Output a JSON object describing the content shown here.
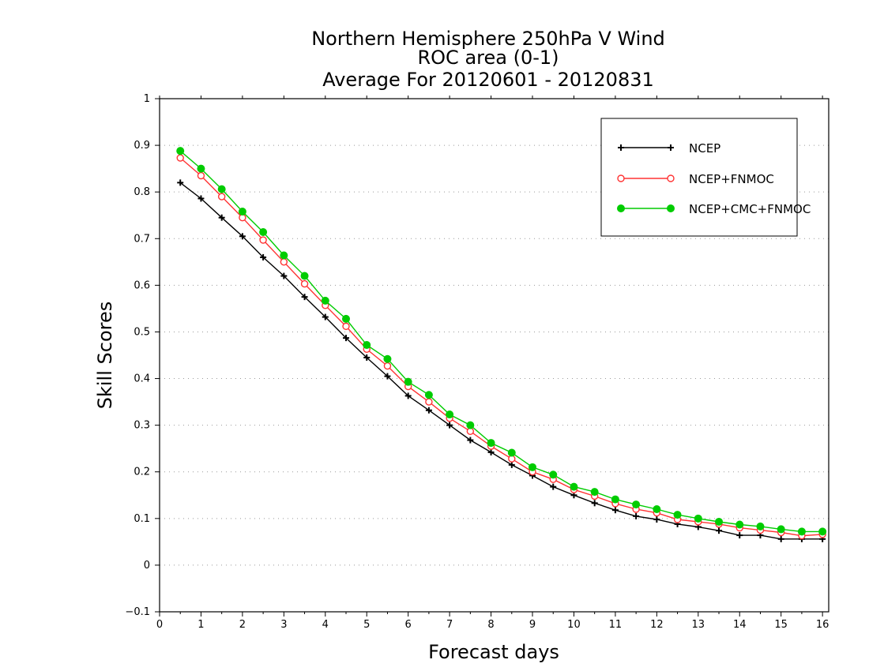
{
  "chart_data": {
    "type": "line",
    "title": [
      "Northern Hemisphere 250hPa V Wind",
      "ROC area (0-1)",
      "Average For 20120601 - 20120831"
    ],
    "xlabel": "Forecast days",
    "ylabel": "Skill Scores",
    "xlim": [
      0,
      16.15
    ],
    "ylim": [
      -0.1,
      1
    ],
    "xticks": [
      "0",
      "1",
      "2",
      "3",
      "4",
      "5",
      "6",
      "7",
      "8",
      "9",
      "10",
      "11",
      "12",
      "13",
      "14",
      "15",
      "16"
    ],
    "yticks": [
      "−0.1",
      "0",
      "0.1",
      "0.2",
      "0.3",
      "0.4",
      "0.5",
      "0.6",
      "0.7",
      "0.8",
      "0.9",
      "1"
    ],
    "grid": true,
    "legend_position": "top-right",
    "x": [
      0.5,
      1,
      1.5,
      2,
      2.5,
      3,
      3.5,
      4,
      4.5,
      5,
      5.5,
      6,
      6.5,
      7,
      7.5,
      8,
      8.5,
      9,
      9.5,
      10,
      10.5,
      11,
      11.5,
      12,
      12.5,
      13,
      13.5,
      14,
      14.5,
      15,
      15.5,
      16
    ],
    "series": [
      {
        "name": "NCEP",
        "color": "#000000",
        "marker": "plus",
        "values": [
          0.82,
          0.786,
          0.745,
          0.705,
          0.66,
          0.62,
          0.575,
          0.532,
          0.487,
          0.445,
          0.405,
          0.363,
          0.332,
          0.3,
          0.268,
          0.242,
          0.215,
          0.192,
          0.168,
          0.15,
          0.133,
          0.118,
          0.105,
          0.098,
          0.088,
          0.082,
          0.074,
          0.064,
          0.064,
          0.056,
          0.056,
          0.056
        ]
      },
      {
        "name": "NCEP+FNMOC",
        "color": "#ff3333",
        "marker": "open-circle",
        "values": [
          0.873,
          0.835,
          0.79,
          0.745,
          0.697,
          0.65,
          0.603,
          0.557,
          0.512,
          0.463,
          0.427,
          0.383,
          0.35,
          0.315,
          0.287,
          0.255,
          0.228,
          0.2,
          0.184,
          0.162,
          0.148,
          0.132,
          0.12,
          0.112,
          0.098,
          0.093,
          0.088,
          0.08,
          0.075,
          0.07,
          0.063,
          0.066
        ]
      },
      {
        "name": "NCEP+CMC+FNMOC",
        "color": "#00cc00",
        "marker": "filled-circle",
        "values": [
          0.888,
          0.85,
          0.806,
          0.758,
          0.714,
          0.664,
          0.62,
          0.567,
          0.528,
          0.472,
          0.442,
          0.393,
          0.365,
          0.323,
          0.3,
          0.262,
          0.241,
          0.21,
          0.194,
          0.168,
          0.157,
          0.141,
          0.13,
          0.12,
          0.108,
          0.1,
          0.093,
          0.087,
          0.083,
          0.077,
          0.072,
          0.072
        ]
      }
    ]
  }
}
